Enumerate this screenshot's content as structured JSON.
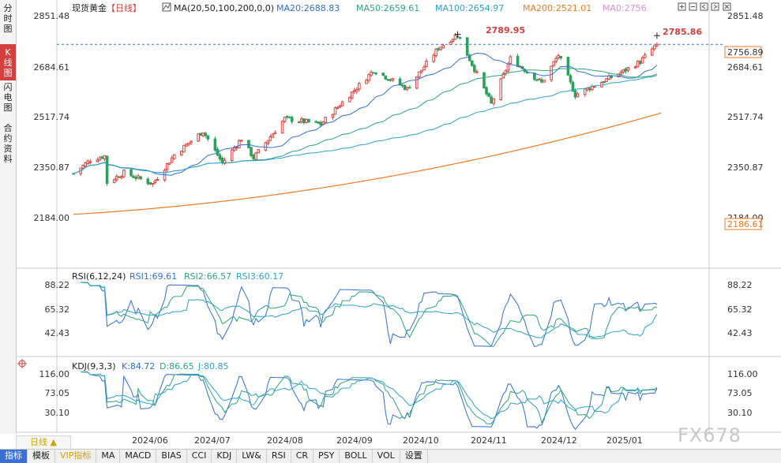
{
  "sidebar": {
    "tabs": [
      {
        "label": "分\n时\n图",
        "active": false
      },
      {
        "label": "K\n线\n图",
        "active": true
      },
      {
        "label": "闪\n电\n图",
        "active": false
      },
      {
        "label": "合\n约\n资\n料",
        "active": false
      }
    ]
  },
  "main": {
    "instrument": "现货黄金",
    "period_tag": "【日线】",
    "ma_header": "MA(20,50,100,200,0,0)",
    "ma_values": [
      {
        "text": "MA20:2688.83",
        "color": "#2f6fd6"
      },
      {
        "text": "MA50:2659.61",
        "color": "#2aa67c"
      },
      {
        "text": "MA100:2654.97",
        "color": "#2ba3c9"
      },
      {
        "text": "MA200:2521.01",
        "color": "#f07a22"
      },
      {
        "text": "MA0:2756",
        "color": "#d98fd8"
      }
    ],
    "y_ticks": [
      "2851.48",
      "2684.61",
      "2517.74",
      "2350.87",
      "2184.00"
    ],
    "current_price": "2756.89",
    "ma200_price": "2186.61",
    "high_label": "2789.95",
    "recent_high_label": "2785.86",
    "x_labels": [
      "2024/06",
      "2024/07",
      "2024/08",
      "2024/09",
      "2024/10",
      "2024/11",
      "2024/12",
      "2025/01"
    ]
  },
  "rsi": {
    "header": "RSI(6,12,24)",
    "values": [
      {
        "text": "RSI1:69.61",
        "color": "#2f6fd6"
      },
      {
        "text": "RSI2:66.57",
        "color": "#2aa67c"
      },
      {
        "text": "RSI3:60.17",
        "color": "#2ba3c9"
      }
    ],
    "ticks": [
      "88.22",
      "65.32",
      "42.43"
    ]
  },
  "kdj": {
    "header": "KDJ(9,3,3)",
    "values": [
      {
        "text": "K:84.72",
        "color": "#2f6fd6"
      },
      {
        "text": "D:86.65",
        "color": "#2aa67c"
      },
      {
        "text": "J:80.85",
        "color": "#2ba3c9"
      }
    ],
    "ticks": [
      "116.00",
      "73.05",
      "30.10"
    ]
  },
  "period_button": "日线 ▲",
  "watermark": "FX678",
  "bottom_tabs": [
    {
      "label": "指标",
      "active": true
    },
    {
      "label": "模板"
    },
    {
      "label": "VIP指标",
      "vip": true
    },
    {
      "label": "MA"
    },
    {
      "label": "MACD"
    },
    {
      "label": "BIAS"
    },
    {
      "label": "CCI"
    },
    {
      "label": "KDJ"
    },
    {
      "label": "LW&"
    },
    {
      "label": "RSI"
    },
    {
      "label": "CR"
    },
    {
      "label": "PSY"
    },
    {
      "label": "BOLL"
    },
    {
      "label": "VOL"
    },
    {
      "label": "设置"
    }
  ],
  "chart_data": {
    "type": "candlestick",
    "title": "现货黄金 【日线】",
    "ylim": [
      2184.0,
      2851.48
    ],
    "x_tick_labels": [
      "2024/06",
      "2024/07",
      "2024/08",
      "2024/09",
      "2024/10",
      "2024/11",
      "2024/12",
      "2025/01"
    ],
    "price_path": [
      {
        "date": "2024-05-24",
        "close": 2330
      },
      {
        "date": "2024-05-31",
        "close": 2375
      },
      {
        "date": "2024-06-06",
        "close": 2388
      },
      {
        "date": "2024-06-07",
        "close": 2300
      },
      {
        "date": "2024-06-14",
        "close": 2333
      },
      {
        "date": "2024-06-26",
        "close": 2296
      },
      {
        "date": "2024-07-05",
        "close": 2392
      },
      {
        "date": "2024-07-17",
        "close": 2470
      },
      {
        "date": "2024-07-25",
        "close": 2365
      },
      {
        "date": "2024-08-02",
        "close": 2445
      },
      {
        "date": "2024-08-07",
        "close": 2382
      },
      {
        "date": "2024-08-20",
        "close": 2512
      },
      {
        "date": "2024-09-04",
        "close": 2493
      },
      {
        "date": "2024-09-20",
        "close": 2622
      },
      {
        "date": "2024-09-26",
        "close": 2672
      },
      {
        "date": "2024-10-10",
        "close": 2610
      },
      {
        "date": "2024-10-23",
        "close": 2745
      },
      {
        "date": "2024-10-31",
        "close": 2789.95
      },
      {
        "date": "2024-11-14",
        "close": 2560
      },
      {
        "date": "2024-11-22",
        "close": 2710
      },
      {
        "date": "2024-12-05",
        "close": 2630
      },
      {
        "date": "2024-12-12",
        "close": 2722
      },
      {
        "date": "2024-12-19",
        "close": 2590
      },
      {
        "date": "2025-01-08",
        "close": 2668
      },
      {
        "date": "2025-01-15",
        "close": 2700
      },
      {
        "date": "2025-01-22",
        "close": 2756.89
      }
    ],
    "moving_averages": [
      {
        "name": "MA20",
        "last": 2688.83
      },
      {
        "name": "MA50",
        "last": 2659.61
      },
      {
        "name": "MA100",
        "last": 2654.97
      },
      {
        "name": "MA200",
        "last": 2521.01
      }
    ],
    "annotations": [
      {
        "date": "2024-10-31",
        "value": 2789.95,
        "text": "2789.95"
      },
      {
        "date": "2025-01-22",
        "value": 2785.86,
        "text": "2785.86"
      }
    ],
    "rsi": {
      "ylim": [
        42.43,
        88.22
      ],
      "last": {
        "RSI1": 69.61,
        "RSI2": 66.57,
        "RSI3": 60.17
      }
    },
    "kdj": {
      "ylim": [
        30.1,
        116.0
      ],
      "last": {
        "K": 84.72,
        "D": 86.65,
        "J": 80.85
      }
    }
  }
}
